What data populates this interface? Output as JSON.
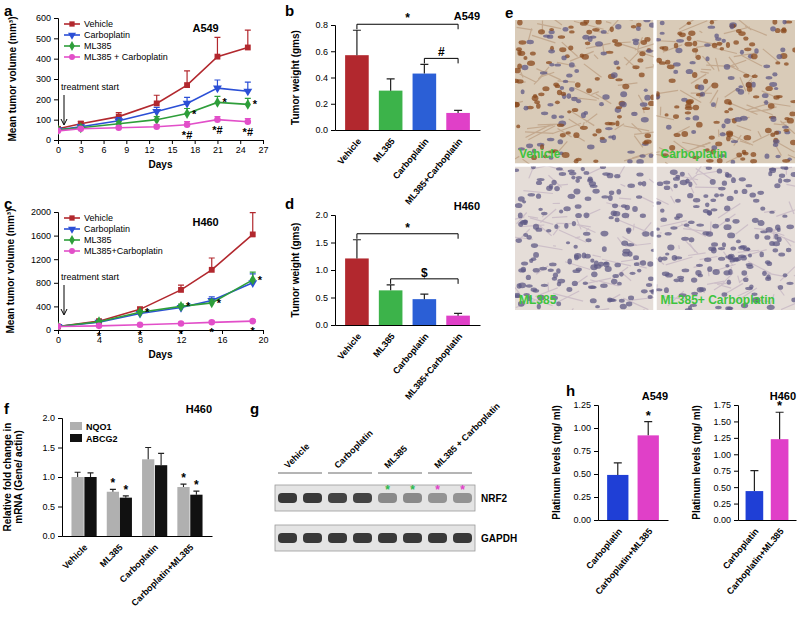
{
  "chart_data": [
    {
      "panel": "a",
      "type": "line",
      "label": "A549",
      "x_label": "Days",
      "y_label": "Mean tumor volume (mm³)",
      "annotations": [
        {
          "text": "treatment start",
          "x": 0
        }
      ],
      "x": [
        0,
        3,
        8,
        13,
        17,
        21,
        25
      ],
      "xlim": [
        0,
        27
      ],
      "xticks": [
        0,
        3,
        6,
        9,
        12,
        15,
        18,
        21,
        24,
        27
      ],
      "ylim": [
        0,
        600
      ],
      "yticks": [
        0,
        100,
        200,
        300,
        400,
        500,
        600
      ],
      "legend": "upper left",
      "series": [
        {
          "name": "Vehicle",
          "color": "#b2282e",
          "marker": "square",
          "values": [
            55,
            80,
            115,
            180,
            270,
            410,
            455
          ],
          "errors": [
            10,
            12,
            20,
            40,
            70,
            95,
            85
          ]
        },
        {
          "name": "Carboplatin",
          "color": "#2b4fd6",
          "marker": "triangle-down",
          "values": [
            50,
            65,
            95,
            140,
            180,
            255,
            240
          ],
          "errors": [
            5,
            8,
            15,
            20,
            30,
            40,
            45
          ]
        },
        {
          "name": "ML385",
          "color": "#2e9e3a",
          "marker": "diamond",
          "values": [
            50,
            60,
            80,
            100,
            130,
            185,
            175
          ],
          "errors": [
            5,
            8,
            10,
            15,
            25,
            30,
            30
          ],
          "annotations": [
            null,
            null,
            null,
            null,
            "*",
            "*",
            "*"
          ]
        },
        {
          "name": "ML385 + Carboplatin",
          "color": "#e24fc9",
          "marker": "circle",
          "values": [
            45,
            55,
            60,
            65,
            75,
            100,
            90
          ],
          "errors": [
            5,
            5,
            8,
            10,
            15,
            15,
            15
          ],
          "annotations": [
            null,
            null,
            null,
            null,
            "*#",
            "*#",
            "*#"
          ]
        }
      ]
    },
    {
      "panel": "b",
      "type": "bar",
      "label": "A549",
      "y_label": "Tumor weight (gms)",
      "categories": [
        "Vehicle",
        "ML385",
        "Carboplatin",
        "ML385+Carboplatin"
      ],
      "values": [
        0.57,
        0.3,
        0.43,
        0.13
      ],
      "errors": [
        0.19,
        0.09,
        0.07,
        0.02
      ],
      "colors": [
        "#b2282e",
        "#3cb34a",
        "#2b5fd6",
        "#e040c8"
      ],
      "ylim": [
        0,
        0.8
      ],
      "yticks": [
        {
          "value": 0,
          "label": "0.0"
        },
        {
          "value": 0.2,
          "label": "0.2"
        },
        {
          "value": 0.4,
          "label": "0.4"
        },
        {
          "value": 0.6,
          "label": "0.6"
        },
        {
          "value": 0.8,
          "label": "0.8"
        }
      ],
      "brackets": [
        {
          "from": "Vehicle",
          "to": "ML385+Carboplatin",
          "text": "*"
        },
        {
          "from": "Carboplatin",
          "to": "ML385+Carboplatin",
          "text": "#"
        }
      ]
    },
    {
      "panel": "c",
      "type": "line",
      "label": "H460",
      "x_label": "Days",
      "y_label": "Mean tumor volume (mm³)",
      "annotations": [
        {
          "text": "treatment start",
          "x": 0
        }
      ],
      "x": [
        0,
        4,
        8,
        12,
        15,
        19
      ],
      "xlim": [
        0,
        20
      ],
      "xticks": [
        0,
        4,
        8,
        12,
        16,
        20
      ],
      "ylim": [
        0,
        2000
      ],
      "yticks": [
        0,
        400,
        800,
        1200,
        1600,
        2000
      ],
      "legend": "upper left",
      "series": [
        {
          "name": "Vehicle",
          "color": "#b2282e",
          "marker": "square",
          "values": [
            60,
            150,
            350,
            680,
            1020,
            1620
          ],
          "errors": [
            10,
            20,
            40,
            80,
            200,
            370
          ]
        },
        {
          "name": "Carboplatin",
          "color": "#2b4fd6",
          "marker": "triangle-down",
          "values": [
            60,
            130,
            280,
            380,
            500,
            800
          ],
          "errors": [
            5,
            20,
            30,
            40,
            60,
            150
          ]
        },
        {
          "name": "ML385",
          "color": "#2e9e3a",
          "marker": "diamond",
          "values": [
            60,
            140,
            300,
            400,
            460,
            850
          ],
          "errors": [
            5,
            20,
            30,
            40,
            50,
            130
          ],
          "annotations": [
            null,
            null,
            "*",
            "*",
            "*",
            "*"
          ]
        },
        {
          "name": "ML385+Carboplatin",
          "color": "#e24fc9",
          "marker": "circle",
          "values": [
            60,
            70,
            90,
            110,
            130,
            150
          ],
          "errors": [
            5,
            10,
            15,
            15,
            20,
            20
          ],
          "annotations": [
            null,
            "*",
            "*",
            "*",
            "*",
            "*"
          ]
        }
      ]
    },
    {
      "panel": "d",
      "type": "bar",
      "label": "H460",
      "y_label": "Tumor weight (gms)",
      "categories": [
        "Vehicle",
        "ML385",
        "Carboplatin",
        "ML385+Carboplatin"
      ],
      "values": [
        1.21,
        0.63,
        0.47,
        0.17
      ],
      "errors": [
        0.34,
        0.1,
        0.09,
        0.04
      ],
      "colors": [
        "#b2282e",
        "#3cb34a",
        "#2b5fd6",
        "#e040c8"
      ],
      "ylim": [
        0,
        2
      ],
      "yticks": [
        {
          "value": 0,
          "label": "0.0"
        },
        {
          "value": 0.5,
          "label": "0.5"
        },
        {
          "value": 1,
          "label": "1.0"
        },
        {
          "value": 1.5,
          "label": "1.5"
        },
        {
          "value": 2,
          "label": "2.0"
        }
      ],
      "brackets": [
        {
          "from": "Vehicle",
          "to": "ML385+Carboplatin",
          "text": "*"
        },
        {
          "from": "ML385",
          "to": "ML385+Carboplatin",
          "text": "$"
        }
      ]
    },
    {
      "panel": "e",
      "type": "micrograph",
      "images": [
        "Vehicle",
        "Carboplatin",
        "ML385",
        "ML385+ Carboplatin"
      ]
    },
    {
      "panel": "f",
      "type": "grouped_bar",
      "label": "H460",
      "y_label": [
        "Relative fold change in",
        "mRNA (Gene/ actin)"
      ],
      "categories": [
        "Vehicle",
        "ML385",
        "Carboplatin",
        "Carboplatin+ML385"
      ],
      "ylim": [
        0,
        2
      ],
      "yticks": [
        {
          "value": 0,
          "label": "0.0"
        },
        {
          "value": 0.5,
          "label": "0.5"
        },
        {
          "value": 1,
          "label": "1.0"
        },
        {
          "value": 1.5,
          "label": "1.5"
        },
        {
          "value": 2,
          "label": "2.0"
        }
      ],
      "legend": "upper left",
      "series": [
        {
          "name": "NQO1",
          "color": "#b0b0b0",
          "values": [
            1.0,
            0.75,
            1.3,
            0.83
          ],
          "errors": [
            0.08,
            0.04,
            0.2,
            0.05
          ],
          "annotations": [
            null,
            "*",
            null,
            "*"
          ]
        },
        {
          "name": "ABCG2",
          "color": "#111111",
          "values": [
            1.0,
            0.65,
            1.2,
            0.7
          ],
          "errors": [
            0.07,
            0.03,
            0.2,
            0.06
          ],
          "annotations": [
            null,
            "*",
            null,
            "*"
          ]
        }
      ]
    },
    {
      "panel": "g",
      "type": "western_blot",
      "lanes": [
        "Vehicle",
        "Carboplatin",
        "ML385",
        "ML385 + Carboplatin"
      ],
      "bands": [
        "NRF2",
        "GAPDH"
      ],
      "lane_marks": [
        null,
        null,
        "*",
        "*"
      ],
      "lane_mark_colors": [
        null,
        null,
        "#2db84d",
        "#e040c8"
      ]
    },
    {
      "panel": "h",
      "type": "bar",
      "label": "A549",
      "y_label": "Platinum levels (mg/ ml)",
      "categories": [
        "Carboplatin",
        "Carboplatin+ML385"
      ],
      "values": [
        0.49,
        0.92
      ],
      "errors": [
        0.13,
        0.15
      ],
      "colors": [
        "#1f3fd6",
        "#e040c8"
      ],
      "annotations": [
        null,
        "*"
      ],
      "ylim": [
        0,
        1.25
      ],
      "yticks": [
        {
          "value": 0,
          "label": "0.00"
        },
        {
          "value": 0.25,
          "label": "0.25"
        },
        {
          "value": 0.5,
          "label": "0.50"
        },
        {
          "value": 0.75,
          "label": "0.75"
        },
        {
          "value": 1,
          "label": "1.00"
        },
        {
          "value": 1.25,
          "label": "1.25"
        }
      ]
    },
    {
      "type": "bar",
      "label": "H460",
      "y_label": "Platinum levels (mg/ ml)",
      "categories": [
        "Carboplatin",
        "Carboplatin+ML385"
      ],
      "values": [
        0.44,
        1.23
      ],
      "errors": [
        0.31,
        0.41
      ],
      "colors": [
        "#1f3fd6",
        "#e040c8"
      ],
      "annotations": [
        null,
        "*"
      ],
      "ylim": [
        0,
        1.75
      ],
      "yticks": [
        {
          "value": 0,
          "label": "0.00"
        },
        {
          "value": 0.25,
          "label": "0.25"
        },
        {
          "value": 0.5,
          "label": "0.50"
        },
        {
          "value": 0.75,
          "label": "0.75"
        },
        {
          "value": 1,
          "label": "1.00"
        },
        {
          "value": 1.25,
          "label": "1.25"
        },
        {
          "value": 1.5,
          "label": "1.50"
        },
        {
          "value": 1.75,
          "label": "1.75"
        }
      ]
    }
  ]
}
